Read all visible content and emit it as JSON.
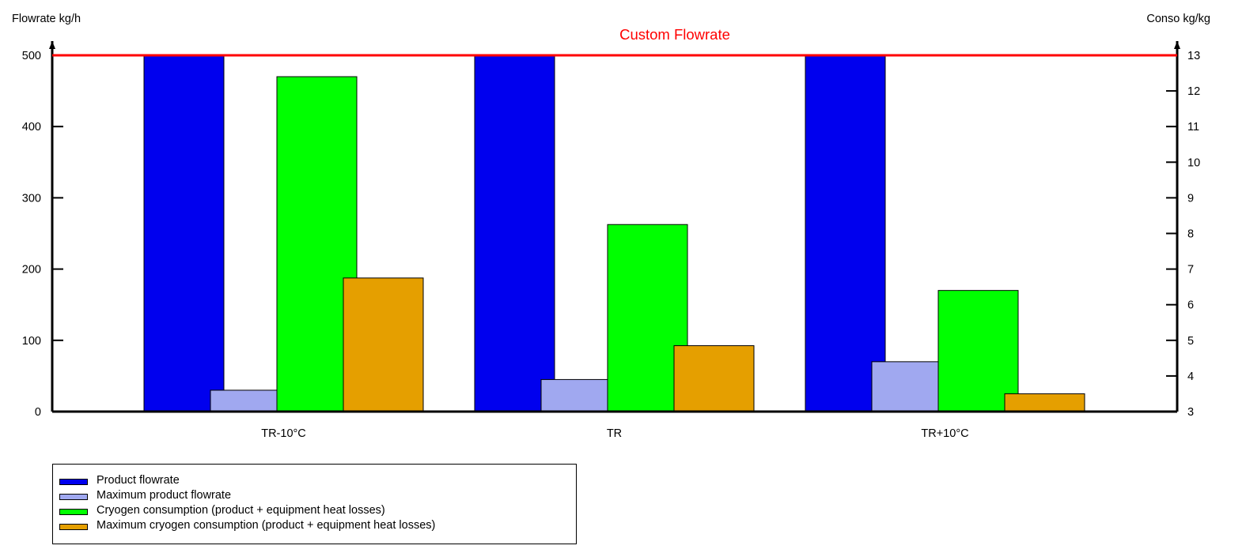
{
  "chart_data": {
    "type": "bar",
    "title": "Custom Flowrate",
    "title_color": "#ff0000",
    "ylabel_left": "Flowrate kg/h",
    "ylabel_right": "Conso kg/kg",
    "ylim_left": [
      0,
      500
    ],
    "ylim_right": [
      3,
      13
    ],
    "yticks_left": [
      0,
      100,
      200,
      300,
      400,
      500
    ],
    "yticks_right": [
      3,
      4,
      5,
      6,
      7,
      8,
      9,
      10,
      11,
      12,
      13
    ],
    "categories": [
      "TR-10°C",
      "TR",
      "TR+10°C"
    ],
    "series": [
      {
        "name": "Product flowrate",
        "axis": "left",
        "color": "#0000ee",
        "values": [
          500,
          500,
          500
        ]
      },
      {
        "name": "Maximum product flowrate",
        "axis": "left",
        "color": "#a0a8f0",
        "values": [
          30,
          45,
          70
        ]
      },
      {
        "name": "Cryogen consumption (product + equipment heat losses)",
        "axis": "right",
        "color": "#00ff00",
        "values": [
          12.4,
          8.25,
          6.4
        ]
      },
      {
        "name": "Maximum cryogen consumption (product + equipment heat losses)",
        "axis": "right",
        "color": "#e59f00",
        "values": [
          6.75,
          4.85,
          3.5
        ]
      }
    ],
    "reference_line": {
      "axis": "left",
      "value": 500,
      "color": "#ff0000"
    },
    "grid": false,
    "legend_position": "bottom-left"
  }
}
